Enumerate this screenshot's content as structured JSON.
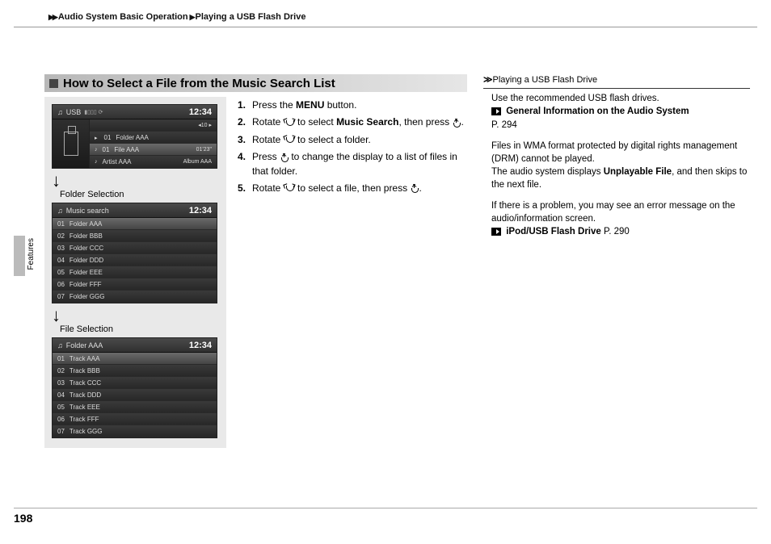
{
  "breadcrumb": {
    "seg1": "Audio System Basic Operation",
    "seg2": "Playing a USB Flash Drive"
  },
  "sideTab": "Features",
  "heading": "How to Select a File from the Music Search List",
  "screen1": {
    "source": "USB",
    "signal": "",
    "clock": "12:34",
    "rows": [
      {
        "idx": "",
        "text": "",
        "right": "◂10 ▸"
      },
      {
        "idx": "01",
        "text": "Folder AAA",
        "right": "",
        "folder": true
      },
      {
        "idx": "01",
        "text": "File AAA",
        "right": "01'23\"",
        "hl": true,
        "music": true
      },
      {
        "idx": "",
        "text": "Artist AAA",
        "right": "Album AAA",
        "music": true
      }
    ]
  },
  "label1": "Folder Selection",
  "screen2": {
    "title": "Music search",
    "clock": "12:34",
    "rows": [
      {
        "idx": "01",
        "text": "Folder AAA",
        "hl": true
      },
      {
        "idx": "02",
        "text": "Folder BBB"
      },
      {
        "idx": "03",
        "text": "Folder CCC"
      },
      {
        "idx": "04",
        "text": "Folder DDD"
      },
      {
        "idx": "05",
        "text": "Folder EEE"
      },
      {
        "idx": "06",
        "text": "Folder FFF"
      },
      {
        "idx": "07",
        "text": "Folder GGG"
      }
    ]
  },
  "label2": "File Selection",
  "screen3": {
    "title": "Folder AAA",
    "clock": "12:34",
    "rows": [
      {
        "idx": "01",
        "text": "Track AAA",
        "hl": true
      },
      {
        "idx": "02",
        "text": "Track BBB"
      },
      {
        "idx": "03",
        "text": "Track CCC"
      },
      {
        "idx": "04",
        "text": "Track DDD"
      },
      {
        "idx": "05",
        "text": "Track EEE"
      },
      {
        "idx": "06",
        "text": "Track FFF"
      },
      {
        "idx": "07",
        "text": "Track GGG"
      }
    ]
  },
  "steps": {
    "s1a": "Press the ",
    "s1b": "MENU",
    "s1c": " button.",
    "s2a": "Rotate ",
    "s2b": " to select ",
    "s2c": "Music Search",
    "s2d": ", then press ",
    "s2e": ".",
    "s3a": "Rotate ",
    "s3b": " to select a folder.",
    "s4a": "Press ",
    "s4b": " to change the display to a list of files in that folder.",
    "s5a": "Rotate ",
    "s5b": " to select a file, then press ",
    "s5c": "."
  },
  "sidebar": {
    "headTitle": "Playing a USB Flash Drive",
    "p1": "Use the recommended USB flash drives.",
    "link1a": "General Information on the Audio System",
    "link1b": "P. 294",
    "p2": "Files in WMA format protected by digital rights management (DRM) cannot be played.",
    "p3a": "The audio system displays ",
    "p3b": "Unplayable File",
    "p3c": ", and then skips to the next file.",
    "p4": "If there is a problem, you may see an error message on the audio/information screen.",
    "link2a": "iPod/USB Flash Drive",
    "link2b": "P. 290"
  },
  "pageNum": "198"
}
